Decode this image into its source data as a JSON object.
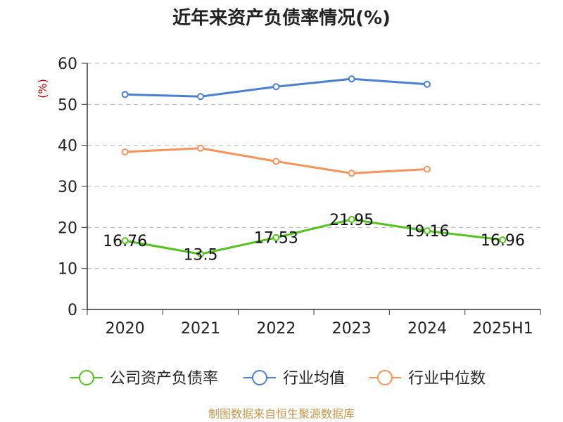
{
  "chart_data": {
    "type": "line",
    "title": "近年来资产负债率情况(%)",
    "ylabel": "(%)",
    "ylim": [
      0,
      60
    ],
    "yticks": [
      0,
      10,
      20,
      30,
      40,
      50,
      60
    ],
    "grid": true,
    "legend_position": "bottom",
    "categories": [
      "2020",
      "2021",
      "2022",
      "2023",
      "2024",
      "2025H1"
    ],
    "series": [
      {
        "name": "公司资产负债率",
        "color": "#52c41a",
        "values": [
          16.76,
          13.5,
          17.53,
          21.95,
          19.16,
          16.96
        ],
        "labels": [
          "16.76",
          "13.5",
          "17.53",
          "21.95",
          "19.16",
          "16.96"
        ],
        "show_labels": true
      },
      {
        "name": "行业均值",
        "color": "#4a7fd4",
        "values": [
          52.4,
          51.9,
          54.3,
          56.2,
          54.9,
          null
        ],
        "show_labels": false
      },
      {
        "name": "行业中位数",
        "color": "#f89258",
        "values": [
          38.4,
          39.3,
          36.1,
          33.2,
          34.2,
          null
        ],
        "show_labels": false
      }
    ],
    "source": "制图数据来自恒生聚源数据库",
    "colors": {
      "axis": "#333333",
      "grid": "#bbbbbb",
      "unit": "#cc0000",
      "source": "#c8964a"
    }
  }
}
